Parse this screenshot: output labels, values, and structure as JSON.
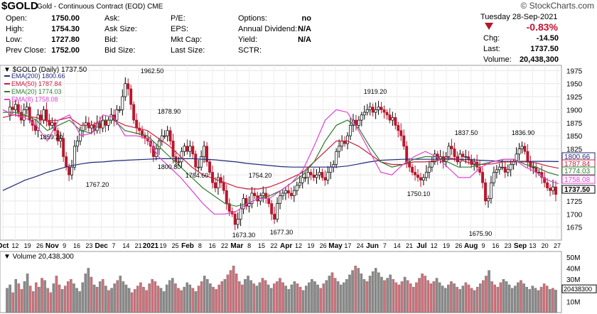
{
  "header": {
    "symbol": "$GOLD",
    "description": "Gold - Continuous Contract (EOD)",
    "exchange": "CME",
    "watermark": "© StockCharts.com",
    "date": "Tuesday  28-Sep-2021",
    "col1": [
      {
        "label": "Open:",
        "value": "1750.00"
      },
      {
        "label": "High:",
        "value": "1754.30"
      },
      {
        "label": "Low:",
        "value": "1727.80"
      },
      {
        "label": "Prev Close:",
        "value": "1752.00"
      }
    ],
    "col2": [
      {
        "label": "Ask:",
        "value": ""
      },
      {
        "label": "Ask Size:",
        "value": ""
      },
      {
        "label": "Bid:",
        "value": ""
      },
      {
        "label": "Bid Size:",
        "value": ""
      }
    ],
    "col3": [
      {
        "label": "P/E:",
        "value": ""
      },
      {
        "label": "EPS:",
        "value": ""
      },
      {
        "label": "Mkt Cap:",
        "value": ""
      },
      {
        "label": "Last Size:",
        "value": ""
      }
    ],
    "col4": [
      {
        "label": "Options:",
        "value": "no"
      },
      {
        "label": "Annual Dividend:",
        "value": "N/A"
      },
      {
        "label": "Yield:",
        "value": "N/A"
      },
      {
        "label": "SCTR:",
        "value": ""
      }
    ],
    "change_pct": "-0.83%",
    "col5": [
      {
        "label": "Chg:",
        "value": "-14.50"
      },
      {
        "label": "Last:",
        "value": "1737.50"
      },
      {
        "label": "Volume:",
        "value": "20,438,300"
      }
    ],
    "colors": {
      "down": "#c8102e"
    }
  },
  "chart_data": [
    {
      "type": "candlestick",
      "title": "$GOLD (Daily) 1737.50",
      "legend": [
        {
          "name": "EMA(200) 1800.66",
          "color": "#1f2a7a"
        },
        {
          "name": "EMA(50) 1787.84",
          "color": "#c81e3c"
        },
        {
          "name": "EMA(20) 1774.03",
          "color": "#2e7d2e"
        },
        {
          "name": "EMA(8) 1758.08",
          "color": "#e040d0"
        }
      ],
      "ylim": [
        1650,
        1985
      ],
      "yticks": [
        1675,
        1700,
        1725,
        1750,
        1775,
        1800,
        1825,
        1850,
        1875,
        1900,
        1925,
        1950,
        1975
      ],
      "xticks": [
        "Oct",
        "12",
        "19",
        "26",
        "Nov",
        "9",
        "16",
        "23",
        "Dec",
        "7",
        "14",
        "21",
        "2021",
        "19",
        "25",
        "Feb",
        "8",
        "16",
        "22",
        "Mar",
        "8",
        "15",
        "22",
        "Apr",
        "12",
        "19",
        "26",
        "May",
        "17",
        "24",
        "Jun",
        "7",
        "14",
        "21",
        "Jul",
        "12",
        "19",
        "26",
        "Aug",
        "9",
        "16",
        "23",
        "Sep",
        "13",
        "20",
        "27"
      ],
      "annotations": [
        "1962.50",
        "1859.20",
        "1767.20",
        "1878.90",
        "1800.80",
        "1784.60",
        "1754.20",
        "1673.30",
        "1677.30",
        "1919.20",
        "1750.10",
        "1837.50",
        "1836.90",
        "1675.90"
      ],
      "right_labels": [
        {
          "text": "1800.66",
          "color": "#1f2a7a"
        },
        {
          "text": "1787.84",
          "color": "#c81e3c"
        },
        {
          "text": "1774.03",
          "color": "#2e7d2e"
        },
        {
          "text": "1758.08",
          "color": "#e040d0"
        },
        {
          "text": "1737.50",
          "color": "#000000"
        }
      ],
      "close_path": [
        1890,
        1905,
        1900,
        1910,
        1895,
        1880,
        1900,
        1905,
        1880,
        1870,
        1860,
        1890,
        1880,
        1900,
        1880,
        1870,
        1875,
        1860,
        1840,
        1845,
        1810,
        1790,
        1775,
        1790,
        1830,
        1840,
        1860,
        1870,
        1875,
        1865,
        1870,
        1860,
        1875,
        1865,
        1880,
        1870,
        1880,
        1890,
        1880,
        1900,
        1900,
        1925,
        1950,
        1940,
        1910,
        1880,
        1865,
        1860,
        1850,
        1845,
        1840,
        1830,
        1810,
        1825,
        1840,
        1850,
        1850,
        1860,
        1840,
        1810,
        1800,
        1800,
        1820,
        1830,
        1820,
        1830,
        1815,
        1790,
        1790,
        1810,
        1830,
        1800,
        1780,
        1760,
        1750,
        1770,
        1760,
        1745,
        1720,
        1705,
        1700,
        1680,
        1690,
        1710,
        1730,
        1715,
        1720,
        1740,
        1735,
        1725,
        1735,
        1740,
        1730,
        1720,
        1700,
        1690,
        1720,
        1735,
        1740,
        1745,
        1740,
        1735,
        1745,
        1755,
        1760,
        1770,
        1770,
        1780,
        1775,
        1770,
        1775,
        1780,
        1770,
        1765,
        1780,
        1790,
        1795,
        1820,
        1830,
        1840,
        1835,
        1850,
        1870,
        1880,
        1870,
        1880,
        1890,
        1895,
        1900,
        1905,
        1895,
        1900,
        1905,
        1900,
        1895,
        1890,
        1880,
        1885,
        1870,
        1860,
        1850,
        1830,
        1800,
        1790,
        1780,
        1775,
        1770,
        1765,
        1770,
        1780,
        1790,
        1800,
        1815,
        1805,
        1810,
        1800,
        1810,
        1830,
        1825,
        1810,
        1800,
        1815,
        1810,
        1810,
        1805,
        1795,
        1800,
        1790,
        1780,
        1760,
        1725,
        1730,
        1760,
        1780,
        1785,
        1790,
        1790,
        1780,
        1785,
        1795,
        1800,
        1815,
        1825,
        1830,
        1820,
        1800,
        1790,
        1790,
        1780,
        1780,
        1770,
        1760,
        1750,
        1745,
        1752,
        1737.5
      ],
      "ema200_path": [
        1745,
        1755,
        1765,
        1772,
        1780,
        1786,
        1792,
        1796,
        1799,
        1800,
        1802,
        1803,
        1804,
        1805,
        1806,
        1806,
        1806,
        1806,
        1805,
        1804,
        1802,
        1800,
        1797,
        1795,
        1793,
        1791,
        1790,
        1790,
        1790,
        1790,
        1790,
        1792,
        1796,
        1800,
        1803,
        1804,
        1805,
        1805,
        1805,
        1805,
        1805,
        1805,
        1804,
        1803,
        1802,
        1801,
        1801,
        1801,
        1801,
        1801,
        1800.66
      ],
      "ema50_path": [
        1885,
        1890,
        1888,
        1885,
        1878,
        1880,
        1885,
        1870,
        1870,
        1880,
        1880,
        1870,
        1865,
        1860,
        1845,
        1830,
        1810,
        1790,
        1775,
        1768,
        1760,
        1752,
        1748,
        1748,
        1752,
        1760,
        1770,
        1780,
        1800,
        1820,
        1840,
        1840,
        1830,
        1815,
        1800,
        1795,
        1795,
        1800,
        1800,
        1802,
        1808,
        1805,
        1798,
        1795,
        1796,
        1800,
        1800,
        1800,
        1798,
        1792,
        1787.84
      ],
      "ema20_path": [
        1895,
        1895,
        1890,
        1880,
        1860,
        1870,
        1880,
        1860,
        1855,
        1880,
        1880,
        1860,
        1855,
        1850,
        1830,
        1810,
        1790,
        1770,
        1750,
        1735,
        1720,
        1715,
        1720,
        1730,
        1735,
        1745,
        1760,
        1775,
        1800,
        1840,
        1870,
        1880,
        1865,
        1830,
        1800,
        1790,
        1795,
        1805,
        1810,
        1810,
        1800,
        1790,
        1790,
        1795,
        1800,
        1805,
        1805,
        1795,
        1790,
        1780,
        1774.03
      ],
      "ema8_path": [
        1900,
        1890,
        1885,
        1870,
        1840,
        1880,
        1890,
        1850,
        1855,
        1890,
        1885,
        1850,
        1850,
        1845,
        1810,
        1790,
        1770,
        1745,
        1720,
        1700,
        1700,
        1705,
        1720,
        1730,
        1730,
        1745,
        1760,
        1785,
        1830,
        1880,
        1900,
        1895,
        1860,
        1820,
        1780,
        1775,
        1795,
        1810,
        1820,
        1810,
        1790,
        1770,
        1770,
        1790,
        1800,
        1805,
        1805,
        1790,
        1780,
        1765,
        1758.08
      ]
    },
    {
      "type": "bar",
      "title": "Volume 20,438,300",
      "ylim": [
        0,
        55
      ],
      "yticks": [
        "50M",
        "40M",
        "30M",
        "20M",
        "10M"
      ],
      "last_label": "20438300",
      "colors": {
        "up": "#8a8a8a",
        "down": "#d0707a"
      },
      "values_m": [
        22,
        25,
        18,
        30,
        26,
        21,
        28,
        35,
        24,
        19,
        27,
        23,
        31,
        29,
        22,
        18,
        26,
        33,
        25,
        21,
        24,
        28,
        30,
        26,
        22,
        19,
        27,
        35,
        40,
        32,
        25,
        23,
        28,
        30,
        24,
        20,
        22,
        26,
        29,
        33,
        28,
        25,
        22,
        18,
        21,
        24,
        27,
        23,
        20,
        26,
        30,
        28,
        24,
        22,
        19,
        25,
        29,
        31,
        26,
        22,
        20,
        23,
        27,
        25,
        22,
        19,
        24,
        28,
        33,
        30,
        26,
        23,
        21,
        25,
        28,
        30,
        34,
        38,
        42,
        35,
        28,
        25,
        30,
        33,
        29,
        26,
        24,
        27,
        31,
        29,
        25,
        22,
        26,
        28,
        31,
        27,
        24,
        21,
        25,
        28,
        26,
        23,
        20,
        24,
        27,
        30,
        28,
        25,
        22,
        26,
        29,
        33,
        36,
        31,
        28,
        25,
        27,
        30,
        34,
        38,
        42,
        40,
        35,
        30,
        28,
        33,
        37,
        40,
        36,
        32,
        29,
        31,
        34,
        30,
        27,
        25,
        28,
        32,
        29,
        26,
        23,
        27,
        31,
        35,
        33,
        29,
        26,
        28,
        31,
        27,
        24,
        22,
        25,
        28,
        26,
        23,
        21,
        24,
        27,
        25,
        22,
        20,
        23,
        26,
        29,
        33,
        38,
        28,
        25,
        23,
        27,
        30,
        28,
        25,
        22,
        24,
        27,
        29,
        26,
        23,
        21,
        24,
        22,
        20,
        23,
        26,
        24,
        21,
        22,
        20.4
      ]
    }
  ]
}
